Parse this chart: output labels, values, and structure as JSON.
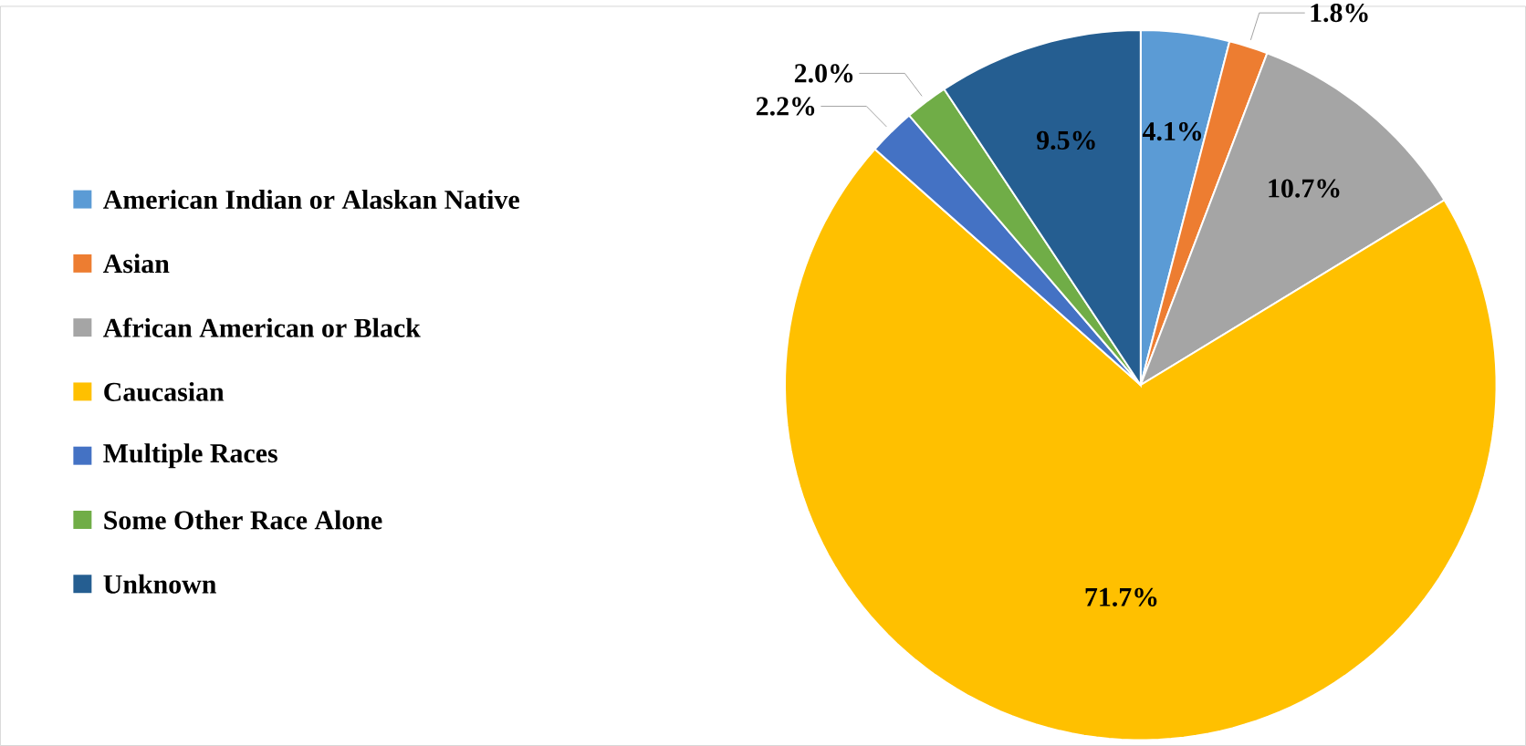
{
  "chart_data": {
    "type": "pie",
    "categories": [
      "American Indian or Alaskan Native",
      "Asian",
      "African American or Black",
      "Caucasian",
      "Multiple Races",
      "Some Other Race Alone",
      "Unknown"
    ],
    "values": [
      4.1,
      1.8,
      10.7,
      71.7,
      2.2,
      2.0,
      9.5
    ],
    "colors": [
      "#5b9bd5",
      "#ed7d31",
      "#a5a5a5",
      "#ffc000",
      "#4472c4",
      "#70ad47",
      "#255e91"
    ],
    "value_labels": [
      "4.1%",
      "1.8%",
      "10.7%",
      "71.7%",
      "2.2%",
      "2.0%",
      "9.5%"
    ],
    "legend": "left"
  }
}
